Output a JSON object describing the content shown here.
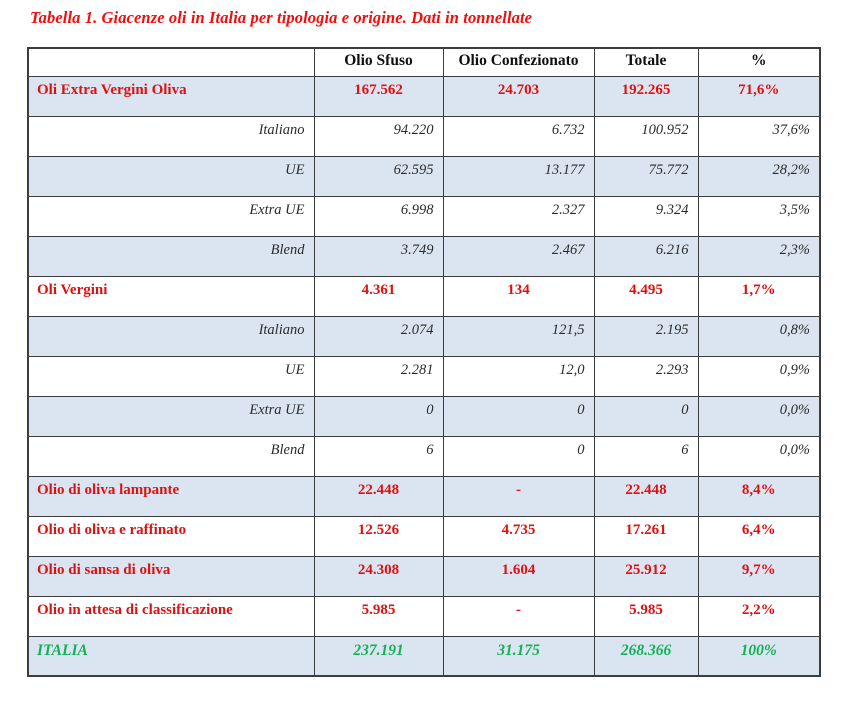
{
  "title": "Tabella 1. Giacenze oli in Italia per tipologia e origine. Dati in tonnellate",
  "colors": {
    "title_red": "#f20c0c",
    "category_red": "#e01010",
    "total_green": "#12b155",
    "row_blue_bg": "#dbe5f1",
    "border_gray": "#3d3d3d"
  },
  "table": {
    "headers": [
      "",
      "Olio Sfuso",
      "Olio Confezionato",
      "Totale",
      "%"
    ],
    "rows": [
      {
        "label": "Oli Extra Vergini Oliva",
        "type": "category",
        "values": [
          "167.562",
          "24.703",
          "192.265",
          "71,6%"
        ]
      },
      {
        "label": "Italiano",
        "type": "sub",
        "values": [
          "94.220",
          "6.732",
          "100.952",
          "37,6%"
        ]
      },
      {
        "label": "UE",
        "type": "sub",
        "values": [
          "62.595",
          "13.177",
          "75.772",
          "28,2%"
        ]
      },
      {
        "label": "Extra UE",
        "type": "sub",
        "values": [
          "6.998",
          "2.327",
          "9.324",
          "3,5%"
        ]
      },
      {
        "label": "Blend",
        "type": "sub",
        "values": [
          "3.749",
          "2.467",
          "6.216",
          "2,3%"
        ]
      },
      {
        "label": "Oli Vergini",
        "type": "category",
        "values": [
          "4.361",
          "134",
          "4.495",
          "1,7%"
        ]
      },
      {
        "label": "Italiano",
        "type": "sub",
        "values": [
          "2.074",
          "121,5",
          "2.195",
          "0,8%"
        ]
      },
      {
        "label": "UE",
        "type": "sub",
        "values": [
          "2.281",
          "12,0",
          "2.293",
          "0,9%"
        ]
      },
      {
        "label": "Extra UE",
        "type": "sub",
        "values": [
          "0",
          "0",
          "0",
          "0,0%"
        ]
      },
      {
        "label": "Blend",
        "type": "sub",
        "values": [
          "6",
          "0",
          "6",
          "0,0%"
        ]
      },
      {
        "label": "Olio di oliva lampante",
        "type": "category",
        "values": [
          "22.448",
          "-",
          "22.448",
          "8,4%"
        ]
      },
      {
        "label": "Olio di oliva e raffinato",
        "type": "category",
        "values": [
          "12.526",
          "4.735",
          "17.261",
          "6,4%"
        ]
      },
      {
        "label": "Olio di sansa di oliva",
        "type": "category",
        "values": [
          "24.308",
          "1.604",
          "25.912",
          "9,7%"
        ]
      },
      {
        "label": "Olio in attesa di classificazione",
        "type": "category",
        "values": [
          "5.985",
          "-",
          "5.985",
          "2,2%"
        ]
      },
      {
        "label": "ITALIA",
        "type": "total",
        "values": [
          "237.191",
          "31.175",
          "268.366",
          "100%"
        ]
      }
    ]
  }
}
